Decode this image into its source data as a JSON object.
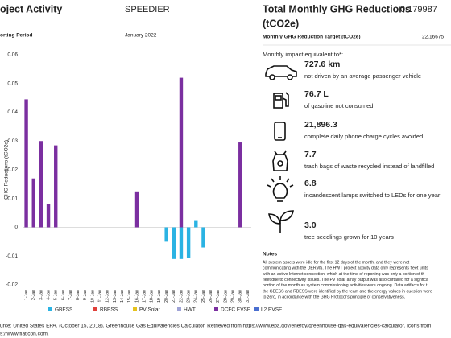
{
  "header": {
    "activity_title": "oject Activity",
    "project": "SPEEDIER",
    "period_label": "orting Period",
    "period": "January 2022",
    "total_title": "Total Monthly GHG Reductions",
    "total_unit": "(tCO2e)",
    "total_value": "0.179987",
    "target_label": "Monthly GHG Reduction Target (tCO2e)",
    "target_value": "22.16675"
  },
  "chart_data": {
    "type": "bar",
    "ylabel": "GHG Reductions (tCO2e)",
    "categories": [
      "1-Jan",
      "2-Jan",
      "3-Jan",
      "4-Jan",
      "5-Jan",
      "6-Jan",
      "7-Jan",
      "8-Jan",
      "9-Jan",
      "10-Jan",
      "11-Jan",
      "12-Jan",
      "13-Jan",
      "14-Jan",
      "15-Jan",
      "16-Jan",
      "17-Jan",
      "18-Jan",
      "19-Jan",
      "20-Jan",
      "21-Jan",
      "22-Jan",
      "23-Jan",
      "24-Jan",
      "25-Jan",
      "26-Jan",
      "27-Jan",
      "28-Jan",
      "29-Jan",
      "30-Jan",
      "31-Jan"
    ],
    "series": [
      {
        "name": "GBESS",
        "color": "#2bb3e3",
        "values": [
          0,
          0,
          0,
          0,
          0,
          0,
          0,
          0,
          0,
          0,
          0,
          0,
          0,
          0,
          0,
          0,
          0,
          0,
          0,
          -0.005,
          -0.011,
          -0.011,
          -0.0105,
          0.0025,
          -0.007,
          0,
          0,
          0,
          0,
          0,
          0
        ]
      },
      {
        "name": "RBESS",
        "color": "#e0403a",
        "values": [
          0,
          0,
          0,
          0,
          0,
          0,
          0,
          0,
          0,
          0,
          0,
          0,
          0,
          0,
          0,
          0,
          0,
          0,
          0,
          0,
          0,
          0,
          0,
          0,
          0,
          0,
          0,
          0,
          0,
          0,
          0
        ]
      },
      {
        "name": "PV Solar",
        "color": "#e6c21c",
        "values": [
          0,
          0,
          0,
          0,
          0,
          0,
          0,
          0,
          0,
          0,
          0,
          0,
          0,
          0,
          0,
          0,
          0,
          0,
          0,
          0,
          0,
          0,
          0,
          0,
          0,
          0,
          0,
          0,
          0,
          0,
          0
        ]
      },
      {
        "name": "HWT",
        "color": "#9fa3d6",
        "values": [
          0,
          0,
          0,
          0,
          0,
          0,
          0,
          0,
          0,
          0,
          0,
          0,
          0,
          0,
          0,
          0,
          0,
          0,
          0,
          0,
          0,
          0,
          0,
          0,
          0,
          0,
          0,
          0,
          0,
          0,
          0
        ]
      },
      {
        "name": "DCFC EVSE",
        "color": "#7b2fa0",
        "values": [
          0.0445,
          0.017,
          0.03,
          0.008,
          0.0285,
          0,
          0,
          0,
          0,
          0,
          0,
          0,
          0,
          0,
          0,
          0.0125,
          0,
          0,
          0,
          0,
          0,
          0.052,
          0,
          0,
          0,
          0,
          0,
          0,
          0,
          0.0295,
          0
        ]
      },
      {
        "name": "L2 EVSE",
        "color": "#4a6fd0",
        "values": [
          0,
          0,
          0,
          0,
          0,
          0,
          0,
          0,
          0,
          0,
          0,
          0,
          0,
          0,
          0,
          0,
          0,
          0,
          0,
          0,
          0,
          0,
          0,
          0,
          0,
          0,
          0,
          0,
          0,
          0,
          0
        ]
      }
    ],
    "ylim": [
      -0.02,
      0.06
    ],
    "yticks": [
      -0.02,
      -0.01,
      0,
      0.01,
      0.02,
      0.03,
      0.04,
      0.05,
      0.06
    ],
    "grid": false
  },
  "impact": {
    "heading": "Monthly impact equivalent to*:",
    "items": [
      {
        "value": "727.6 km",
        "text": "not driven by an average passenger vehicle"
      },
      {
        "value": "76.7 L",
        "text": "of gasoline not consumed"
      },
      {
        "value": "21,896.3",
        "text": "complete daily phone charge cycles avoided"
      },
      {
        "value": "7.7",
        "text": "trash bags of waste recycled instead of landfilled"
      },
      {
        "value": "6.8",
        "text": "incandescent lamps switched to LEDs for one year"
      },
      {
        "value": "3.0",
        "text": "tree seedlings grown for 10 years"
      }
    ]
  },
  "notes": {
    "title": "Notes",
    "lines": [
      "All system assets were idle for the first 12 days of the month, and they were not",
      "communicating with the DERMS. The HWT project activity data only represents fleet units",
      "with an active Internet connection, which at the time of reporting was only a portion of th",
      "fleet due to connectivity issues. The PV solar array output was also curtailed for a signfica",
      "portion of the month as system commissioning activities were ongoing. Data artifacts for t",
      "the GBESS and RBESS were identified by the team and the energy values in question were",
      "to zero, in accordance with the GHG Protocol's principle of conservativeness."
    ]
  },
  "source": {
    "lines": [
      "urce: United States EPA. (October 15, 2018). Greenhouse Gas Equivalencies Calculator. Retrieved from https://www.epa.gov/energy/greenhouse-gas-equivalencies-calculator. Icons from",
      "s://www.flaticon.com."
    ]
  }
}
